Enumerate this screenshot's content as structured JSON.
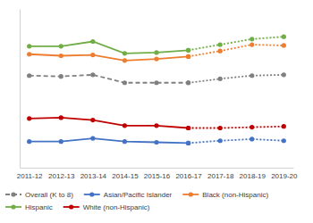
{
  "chart_data": {
    "type": "line",
    "categories": [
      "2011-12",
      "2012-13",
      "2013-14",
      "2014-15",
      "2015-16",
      "2016-17",
      "2017-18",
      "2018-19",
      "2019-20"
    ],
    "ylim": [
      0,
      100
    ],
    "tick_labels": "x",
    "grid": false,
    "legend": "bottom",
    "marker": "circle",
    "series": [
      {
        "name": "Overall (K to 8)",
        "color": "#808080",
        "line_style": "dashed",
        "values": [
          58,
          57.5,
          58.5,
          53.5,
          53.5,
          53.5,
          null,
          null,
          null
        ]
      },
      {
        "name": "Asian/Pacific Islander",
        "color": "#4472c4",
        "line_style": "solid",
        "values": [
          16.5,
          16.5,
          18.5,
          16.5,
          16,
          15.5,
          null,
          null,
          null
        ]
      },
      {
        "name": "Black (non-Hispanic)",
        "color": "#ed7d31",
        "line_style": "solid",
        "values": [
          71.5,
          70.5,
          71,
          67.5,
          68.5,
          70,
          null,
          null,
          null
        ]
      },
      {
        "name": "Hispanic",
        "color": "#70ad47",
        "line_style": "solid",
        "values": [
          76.5,
          76.5,
          79.5,
          72,
          72.5,
          74,
          null,
          null,
          null
        ]
      },
      {
        "name": "White (non-Hispanic)",
        "color": "#c00000",
        "line_style": "solid",
        "values": [
          31,
          31.5,
          30,
          26.5,
          26.5,
          25,
          null,
          null,
          null
        ]
      },
      {
        "color": "#808080",
        "line_style": "dotted",
        "values": [
          null,
          null,
          null,
          null,
          null,
          53.5,
          56,
          58,
          58.5
        ]
      },
      {
        "color": "#4472c4",
        "line_style": "dotted",
        "values": [
          null,
          null,
          null,
          null,
          null,
          15.5,
          17,
          18,
          17
        ]
      },
      {
        "color": "#ed7d31",
        "line_style": "dotted",
        "values": [
          null,
          null,
          null,
          null,
          null,
          70,
          73.5,
          77.5,
          77
        ]
      },
      {
        "color": "#70ad47",
        "line_style": "dotted",
        "values": [
          null,
          null,
          null,
          null,
          null,
          74,
          77.5,
          81,
          82.5
        ]
      },
      {
        "color": "#c00000",
        "line_style": "dotted",
        "values": [
          null,
          null,
          null,
          null,
          null,
          25,
          25,
          25.5,
          26
        ]
      }
    ]
  }
}
